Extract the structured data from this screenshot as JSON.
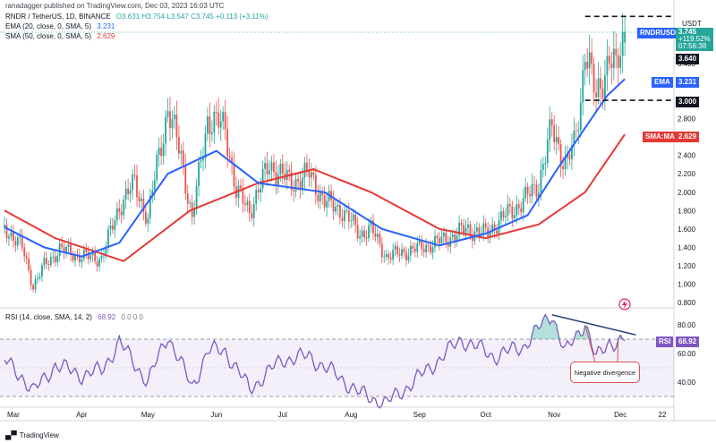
{
  "header": {
    "text": "ranadagger published on TradingView.com, Dec 03, 2023 16:03 UTC"
  },
  "legend": {
    "symbol": "RNDR / TetherUS, 1D, BINANCE",
    "ohlc": "O3.631  H3.754  L3.547  C3.745  +0.113 (+3.11%)",
    "ema": {
      "label": "EMA (20, close, 0, SMA, 5)",
      "value": "3.231",
      "color": "#2962ff"
    },
    "sma": {
      "label": "SMA (50, close, 0, SMA, 5)",
      "value": "2.629",
      "color": "#e53935"
    },
    "rsi": {
      "label": "RSI (14, close, SMA, 14, 2)",
      "value": "68.92",
      "extra": "0  0  0  0"
    }
  },
  "axis": {
    "unit": "USDT",
    "y_ticks": [
      "3.400",
      "3.200",
      "2.800",
      "2.600",
      "2.400",
      "2.200",
      "2.000",
      "1.800",
      "1.600",
      "1.400",
      "1.200",
      "1.000",
      "0.800"
    ],
    "rsi_ticks": [
      "80.00",
      "60.00",
      "40.00"
    ],
    "x_ticks": [
      "Mar",
      "Apr",
      "May",
      "Jun",
      "Jul",
      "Aug",
      "Sep",
      "Oct",
      "Nov",
      "Dec",
      "22"
    ]
  },
  "tags": {
    "symbol": "RNDRUSDT",
    "price": "3.745",
    "change": "+119.52%",
    "countdown": "07:56:38",
    "level_high": "3.640",
    "level_low": "3.000",
    "ema": "EMA",
    "ema_value": "3.231",
    "sma": "SMA:MA",
    "sma_value": "2.629",
    "rsi": "RSI",
    "rsi_value": "68.92"
  },
  "annotation": {
    "text": "Negative divergence"
  },
  "footer": {
    "brand": "TradingView"
  },
  "colors": {
    "up": "#26a69a",
    "down": "#ef5350",
    "ema": "#2962ff",
    "sma": "#e53935",
    "rsi": "#7e57c2",
    "annot": "#1f3a7a"
  },
  "chart_data": {
    "type": "candlestick",
    "symbol": "RNDR / TetherUS",
    "timeframe": "1D",
    "ylim": [
      0.8,
      3.8
    ],
    "last": {
      "open": 3.631,
      "high": 3.754,
      "low": 3.547,
      "close": 3.745
    },
    "close_path": [
      [
        "2023-02-25",
        1.62
      ],
      [
        "2023-03-05",
        1.4
      ],
      [
        "2023-03-10",
        0.98
      ],
      [
        "2023-03-15",
        1.2
      ],
      [
        "2023-03-22",
        1.38
      ],
      [
        "2023-04-01",
        1.3
      ],
      [
        "2023-04-10",
        1.28
      ],
      [
        "2023-04-18",
        1.85
      ],
      [
        "2023-04-25",
        2.1
      ],
      [
        "2023-05-01",
        1.7
      ],
      [
        "2023-05-05",
        2.3
      ],
      [
        "2023-05-10",
        2.9
      ],
      [
        "2023-05-16",
        2.4
      ],
      [
        "2023-05-21",
        1.7
      ],
      [
        "2023-05-28",
        2.8
      ],
      [
        "2023-06-05",
        2.7
      ],
      [
        "2023-06-10",
        2.0
      ],
      [
        "2023-06-16",
        1.8
      ],
      [
        "2023-06-25",
        2.3
      ],
      [
        "2023-07-05",
        2.1
      ],
      [
        "2023-07-13",
        2.2
      ],
      [
        "2023-07-20",
        1.9
      ],
      [
        "2023-07-28",
        1.8
      ],
      [
        "2023-08-05",
        1.55
      ],
      [
        "2023-08-10",
        1.6
      ],
      [
        "2023-08-17",
        1.3
      ],
      [
        "2023-08-25",
        1.35
      ],
      [
        "2023-09-02",
        1.4
      ],
      [
        "2023-09-12",
        1.48
      ],
      [
        "2023-09-22",
        1.6
      ],
      [
        "2023-10-01",
        1.55
      ],
      [
        "2023-10-10",
        1.75
      ],
      [
        "2023-10-18",
        1.9
      ],
      [
        "2023-10-25",
        2.1
      ],
      [
        "2023-10-31",
        2.7
      ],
      [
        "2023-11-06",
        2.3
      ],
      [
        "2023-11-10",
        2.5
      ],
      [
        "2023-11-13",
        3.0
      ],
      [
        "2023-11-15",
        3.6
      ],
      [
        "2023-11-20",
        3.0
      ],
      [
        "2023-11-26",
        3.5
      ],
      [
        "2023-11-29",
        3.3
      ],
      [
        "2023-12-03",
        3.745
      ]
    ],
    "ema_path": [
      [
        "2023-02-25",
        1.62
      ],
      [
        "2023-03-15",
        1.4
      ],
      [
        "2023-04-01",
        1.3
      ],
      [
        "2023-04-18",
        1.45
      ],
      [
        "2023-05-10",
        2.2
      ],
      [
        "2023-06-01",
        2.45
      ],
      [
        "2023-06-20",
        2.1
      ],
      [
        "2023-07-20",
        2.0
      ],
      [
        "2023-08-15",
        1.6
      ],
      [
        "2023-09-10",
        1.42
      ],
      [
        "2023-10-01",
        1.55
      ],
      [
        "2023-10-20",
        1.75
      ],
      [
        "2023-11-01",
        2.2
      ],
      [
        "2023-11-15",
        2.7
      ],
      [
        "2023-11-25",
        3.05
      ],
      [
        "2023-12-03",
        3.231
      ]
    ],
    "sma_path": [
      [
        "2023-02-25",
        1.8
      ],
      [
        "2023-03-20",
        1.5
      ],
      [
        "2023-04-20",
        1.25
      ],
      [
        "2023-05-20",
        1.8
      ],
      [
        "2023-06-20",
        2.1
      ],
      [
        "2023-07-15",
        2.25
      ],
      [
        "2023-08-10",
        2.0
      ],
      [
        "2023-09-10",
        1.6
      ],
      [
        "2023-10-01",
        1.5
      ],
      [
        "2023-10-25",
        1.65
      ],
      [
        "2023-11-15",
        2.0
      ],
      [
        "2023-12-03",
        2.629
      ]
    ],
    "levels": [
      3.64,
      3.0
    ],
    "rsi": {
      "ylim": [
        20,
        90
      ],
      "bands": [
        70,
        30
      ],
      "path": [
        [
          "2023-02-25",
          55
        ],
        [
          "2023-03-05",
          44
        ],
        [
          "2023-03-10",
          33
        ],
        [
          "2023-03-20",
          52
        ],
        [
          "2023-04-01",
          45
        ],
        [
          "2023-04-10",
          48
        ],
        [
          "2023-04-18",
          68
        ],
        [
          "2023-05-01",
          40
        ],
        [
          "2023-05-10",
          73
        ],
        [
          "2023-05-21",
          36
        ],
        [
          "2023-05-28",
          62
        ],
        [
          "2023-06-05",
          62
        ],
        [
          "2023-06-16",
          35
        ],
        [
          "2023-07-01",
          56
        ],
        [
          "2023-07-13",
          58
        ],
        [
          "2023-07-28",
          42
        ],
        [
          "2023-08-05",
          32
        ],
        [
          "2023-08-17",
          25
        ],
        [
          "2023-09-02",
          45
        ],
        [
          "2023-09-20",
          70
        ],
        [
          "2023-10-05",
          58
        ],
        [
          "2023-10-18",
          65
        ],
        [
          "2023-10-31",
          88
        ],
        [
          "2023-11-06",
          60
        ],
        [
          "2023-11-15",
          82
        ],
        [
          "2023-11-20",
          56
        ],
        [
          "2023-11-26",
          68
        ],
        [
          "2023-12-03",
          68.92
        ]
      ],
      "divergence_line": [
        [
          "2023-10-31",
          87
        ],
        [
          "2023-12-08",
          73
        ]
      ]
    }
  }
}
